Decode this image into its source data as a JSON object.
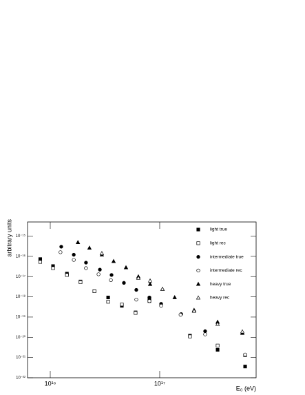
{
  "chart_data": {
    "type": "scatter",
    "x_label": "E₀ (eV)",
    "y_label": "arbitrary units",
    "log_x": true,
    "log_y": true,
    "xlim": [
      6200000000000000.0,
      7.6e+17
    ],
    "ylim": [
      1e-22,
      5e-15
    ],
    "xticks": [
      {
        "value": 1e+16,
        "label": "10¹⁶"
      },
      {
        "value": 1e+17,
        "label": "10¹⁷"
      }
    ],
    "yticks": [
      {
        "value": 1e-22,
        "label": "10⁻²²"
      },
      {
        "value": 1e-21,
        "label": "10⁻²¹"
      },
      {
        "value": 1e-20,
        "label": "10⁻²⁰"
      },
      {
        "value": 1e-19,
        "label": "10⁻¹⁹"
      },
      {
        "value": 1e-18,
        "label": "10⁻¹⁸"
      },
      {
        "value": 1e-17,
        "label": "10⁻¹⁷"
      },
      {
        "value": 1e-16,
        "label": "10⁻¹⁶"
      },
      {
        "value": 1e-15,
        "label": "10⁻¹⁵"
      }
    ],
    "legend": "top right",
    "series": [
      {
        "name": "light true",
        "color": "#000000",
        "marker": "square",
        "filled": true,
        "x": [
          8100000000000000.0,
          1.06e+16,
          1.42e+16,
          1.89e+16,
          2.53e+16,
          3.38e+16,
          4.51e+16,
          6.02e+16,
          8.05e+16,
          1.89e+17,
          3.38e+17,
          6.03e+17
        ],
        "values": [
          7.3e-17,
          3.3e-17,
          1.4e-17,
          5.7e-18,
          1.9e-18,
          9.3e-19,
          3.6e-19,
          1.7e-19,
          8.5e-19,
          1.2e-20,
          2.4e-21,
          3.6e-22
        ]
      },
      {
        "name": "light rec",
        "color": "#000000",
        "marker": "square",
        "filled": false,
        "x": [
          8100000000000000.0,
          1.06e+16,
          1.42e+16,
          1.89e+16,
          2.53e+16,
          3.38e+16,
          4.51e+16,
          6.02e+16,
          8.05e+16,
          1.89e+17,
          3.38e+17,
          6.03e+17
        ],
        "values": [
          5.3e-17,
          2.6e-17,
          1.2e-17,
          5.3e-18,
          1.9e-18,
          5.7e-19,
          4.2e-19,
          1.6e-19,
          6.2e-19,
          1.1e-20,
          3.9e-21,
          1.3e-21
        ]
      },
      {
        "name": "intermediate true",
        "color": "#000000",
        "marker": "circle",
        "filled": true,
        "x": [
          1.26e+16,
          1.64e+16,
          2.12e+16,
          2.84e+16,
          3.63e+16,
          4.71e+16,
          6.11e+16,
          8.05e+16,
          1.03e+17,
          1.57e+17,
          2.6e+17
        ],
        "values": [
          3e-16,
          1.2e-16,
          4.9e-17,
          2.2e-17,
          1.2e-17,
          4.9e-18,
          2.2e-18,
          9.3e-19,
          4.5e-19,
          1.4e-19,
          2e-20
        ]
      },
      {
        "name": "intermediate rec",
        "color": "#000000",
        "marker": "circle",
        "filled": false,
        "x": [
          1.24e+16,
          1.64e+16,
          2.12e+16,
          2.76e+16,
          3.58e+16,
          6.11e+16,
          8.05e+16,
          1.03e+17,
          1.55e+17,
          2.6e+17,
          6.03e+17
        ],
        "values": [
          1.6e-16,
          6.7e-17,
          2.6e-17,
          1.3e-17,
          6.7e-18,
          7.3e-19,
          6.2e-19,
          3.6e-19,
          1.3e-19,
          1.4e-20,
          1.4e-21
        ]
      },
      {
        "name": "heavy true",
        "color": "#000000",
        "marker": "triangle",
        "filled": true,
        "x": [
          1.79e+16,
          2.28e+16,
          2.96e+16,
          3.79e+16,
          4.92e+16,
          6.38e+16,
          8.17e+16,
          1.06e+17,
          1.37e+17,
          2.06e+17,
          3.38e+17,
          5.69e+17
        ],
        "values": [
          4.9e-16,
          2.6e-16,
          1.2e-16,
          5.7e-17,
          2.8e-17,
          1e-17,
          4.2e-18,
          2.4e-18,
          9.3e-19,
          2.2e-19,
          5.7e-20,
          1.6e-20
        ]
      },
      {
        "name": "heavy rec",
        "color": "#000000",
        "marker": "triangle",
        "filled": false,
        "x": [
          2.96e+16,
          6.38e+16,
          8.17e+16,
          1.06e+17,
          2.06e+17,
          3.38e+17,
          5.69e+17
        ],
        "values": [
          1.4e-16,
          8.5e-18,
          6.2e-18,
          2.4e-18,
          2e-19,
          4.5e-20,
          1.9e-20
        ]
      }
    ]
  }
}
